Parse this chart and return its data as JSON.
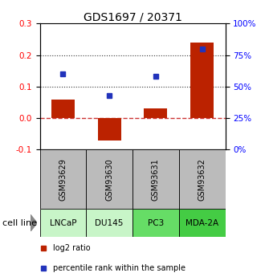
{
  "title": "GDS1697 / 20371",
  "samples": [
    "GSM93629",
    "GSM93630",
    "GSM93631",
    "GSM93632"
  ],
  "cell_lines": [
    "LNCaP",
    "DU145",
    "PC3",
    "MDA-2A"
  ],
  "cell_line_colors": [
    "#c8f5c8",
    "#c8f5c8",
    "#66dd66",
    "#44cc44"
  ],
  "log2_ratio": [
    0.06,
    -0.07,
    0.03,
    0.24
  ],
  "percentile_rank": [
    0.6,
    0.43,
    0.58,
    0.8
  ],
  "left_ylim": [
    -0.1,
    0.3
  ],
  "right_ylim": [
    0.0,
    1.0
  ],
  "left_yticks": [
    -0.1,
    0.0,
    0.1,
    0.2,
    0.3
  ],
  "right_yticks": [
    0.0,
    0.25,
    0.5,
    0.75,
    1.0
  ],
  "right_yticklabels": [
    "0%",
    "25%",
    "50%",
    "75%",
    "100%"
  ],
  "bar_color": "#bb2200",
  "dot_color": "#2233bb",
  "bar_width": 0.5,
  "hline_zero_color": "#cc3333",
  "hline_dotted_color": "#333333",
  "sample_box_color": "#bbbbbb",
  "title_fontsize": 10,
  "tick_fontsize": 7.5,
  "sample_fontsize": 7,
  "label_fontsize": 8,
  "legend_fontsize": 7,
  "cell_line_label": "cell line"
}
